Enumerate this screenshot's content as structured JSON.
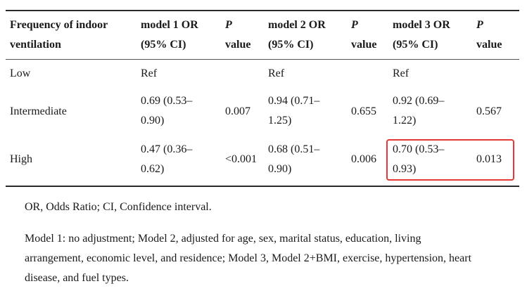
{
  "table": {
    "headers": {
      "col1": [
        "Frequency of indoor",
        "ventilation"
      ],
      "col2": [
        "model 1 OR",
        "(95% CI)"
      ],
      "col3": [
        "P",
        "value"
      ],
      "col4": [
        "model 2 OR",
        "(95% CI)"
      ],
      "col5": [
        "P",
        "value"
      ],
      "col6": [
        "model 3 OR",
        "(95% CI)"
      ],
      "col7": [
        "P",
        "value"
      ]
    },
    "rows": [
      {
        "label": "Low",
        "m1": [
          "Ref",
          ""
        ],
        "p1": "",
        "m2": [
          "Ref",
          ""
        ],
        "p2": "",
        "m3": [
          "Ref",
          ""
        ],
        "p3": ""
      },
      {
        "label": "Intermediate",
        "m1": [
          "0.69 (0.53–",
          "0.90)"
        ],
        "p1": "0.007",
        "m2": [
          "0.94 (0.71–",
          "1.25)"
        ],
        "p2": "0.655",
        "m3": [
          "0.92 (0.69–",
          "1.22)"
        ],
        "p3": "0.567"
      },
      {
        "label": "High",
        "m1": [
          "0.47 (0.36–",
          "0.62)"
        ],
        "p1": "<0.001",
        "m2": [
          "0.68 (0.51–",
          "0.90)"
        ],
        "p2": "0.006",
        "m3": [
          "0.70 (0.53–",
          "0.93)"
        ],
        "p3": "0.013"
      }
    ],
    "highlight_color": "#e53935"
  },
  "notes": {
    "abbrev": "OR, Odds Ratio; CI, Confidence interval.",
    "models_line1": "Model 1: no adjustment; Model 2, adjusted for age, sex, marital status, education, living",
    "models_line2": "arrangement, economic level, and residence; Model 3, Model 2+BMI, exercise, hypertension, heart",
    "models_line3": "disease, and fuel types."
  }
}
